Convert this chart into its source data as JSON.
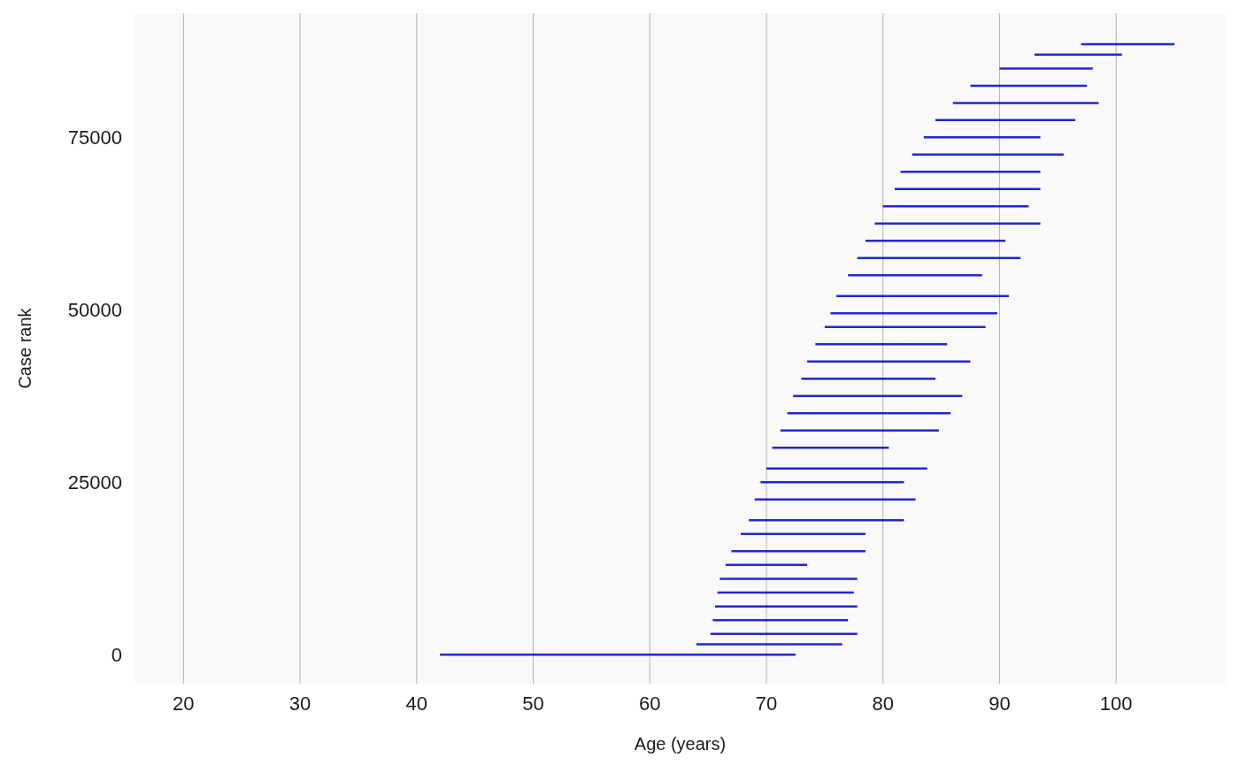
{
  "chart_data": {
    "type": "line",
    "xlabel": "Age (years)",
    "ylabel": "Case rank",
    "xlim": [
      15.8,
      109.4
    ],
    "ylim": [
      -4200,
      93000
    ],
    "xticks": [
      20,
      30,
      40,
      50,
      60,
      70,
      80,
      90,
      100
    ],
    "yticks": [
      0,
      25000,
      50000,
      75000
    ],
    "grid": "x",
    "marker": "none",
    "line_style": "solid",
    "series": [
      {
        "color": "#0000cc",
        "x": [
          42,
          72.5
        ],
        "values": [
          0,
          0
        ]
      },
      {
        "color": "#0000cc",
        "x": [
          64,
          76.5
        ],
        "values": [
          1500,
          1500
        ]
      },
      {
        "color": "#0000cc",
        "x": [
          65.2,
          77.8
        ],
        "values": [
          3000,
          3000
        ]
      },
      {
        "color": "#0000cc",
        "x": [
          65.4,
          77
        ],
        "values": [
          5000,
          5000
        ]
      },
      {
        "color": "#0000cc",
        "x": [
          65.6,
          77.8
        ],
        "values": [
          7000,
          7000
        ]
      },
      {
        "color": "#0000cc",
        "x": [
          65.8,
          77.5
        ],
        "values": [
          9000,
          9000
        ]
      },
      {
        "color": "#0000cc",
        "x": [
          66,
          77.8
        ],
        "values": [
          11000,
          11000
        ]
      },
      {
        "color": "#0000cc",
        "x": [
          66.5,
          73.5
        ],
        "values": [
          13000,
          13000
        ]
      },
      {
        "color": "#0000cc",
        "x": [
          67,
          78.5
        ],
        "values": [
          15000,
          15000
        ]
      },
      {
        "color": "#0000cc",
        "x": [
          67.8,
          78.5
        ],
        "values": [
          17500,
          17500
        ]
      },
      {
        "color": "#0000cc",
        "x": [
          68.5,
          81.8
        ],
        "values": [
          19500,
          19500
        ]
      },
      {
        "color": "#0000cc",
        "x": [
          69,
          82.8
        ],
        "values": [
          22500,
          22500
        ]
      },
      {
        "color": "#0000cc",
        "x": [
          69.5,
          81.8
        ],
        "values": [
          25000,
          25000
        ]
      },
      {
        "color": "#0000cc",
        "x": [
          70,
          83.8
        ],
        "values": [
          27000,
          27000
        ]
      },
      {
        "color": "#0000cc",
        "x": [
          70.5,
          80.5
        ],
        "values": [
          30000,
          30000
        ]
      },
      {
        "color": "#0000cc",
        "x": [
          71.2,
          84.8
        ],
        "values": [
          32500,
          32500
        ]
      },
      {
        "color": "#0000cc",
        "x": [
          71.8,
          85.8
        ],
        "values": [
          35000,
          35000
        ]
      },
      {
        "color": "#0000cc",
        "x": [
          72.3,
          86.8
        ],
        "values": [
          37500,
          37500
        ]
      },
      {
        "color": "#0000cc",
        "x": [
          73,
          84.5
        ],
        "values": [
          40000,
          40000
        ]
      },
      {
        "color": "#0000cc",
        "x": [
          73.5,
          87.5
        ],
        "values": [
          42500,
          42500
        ]
      },
      {
        "color": "#0000cc",
        "x": [
          74.2,
          85.5
        ],
        "values": [
          45000,
          45000
        ]
      },
      {
        "color": "#0000cc",
        "x": [
          75,
          88.8
        ],
        "values": [
          47500,
          47500
        ]
      },
      {
        "color": "#0000cc",
        "x": [
          75.5,
          89.8
        ],
        "values": [
          49500,
          49500
        ]
      },
      {
        "color": "#0000cc",
        "x": [
          76,
          90.8
        ],
        "values": [
          52000,
          52000
        ]
      },
      {
        "color": "#0000cc",
        "x": [
          77,
          88.5
        ],
        "values": [
          55000,
          55000
        ]
      },
      {
        "color": "#0000cc",
        "x": [
          77.8,
          91.8
        ],
        "values": [
          57500,
          57500
        ]
      },
      {
        "color": "#0000cc",
        "x": [
          78.5,
          90.5
        ],
        "values": [
          60000,
          60000
        ]
      },
      {
        "color": "#0000cc",
        "x": [
          79.3,
          93.5
        ],
        "values": [
          62500,
          62500
        ]
      },
      {
        "color": "#0000cc",
        "x": [
          80,
          92.5
        ],
        "values": [
          65000,
          65000
        ]
      },
      {
        "color": "#0000cc",
        "x": [
          81,
          93.5
        ],
        "values": [
          67500,
          67500
        ]
      },
      {
        "color": "#0000cc",
        "x": [
          81.5,
          93.5
        ],
        "values": [
          70000,
          70000
        ]
      },
      {
        "color": "#0000cc",
        "x": [
          82.5,
          95.5
        ],
        "values": [
          72500,
          72500
        ]
      },
      {
        "color": "#0000cc",
        "x": [
          83.5,
          93.5
        ],
        "values": [
          75000,
          75000
        ]
      },
      {
        "color": "#0000cc",
        "x": [
          84.5,
          96.5
        ],
        "values": [
          77500,
          77500
        ]
      },
      {
        "color": "#0000cc",
        "x": [
          86,
          98.5
        ],
        "values": [
          80000,
          80000
        ]
      },
      {
        "color": "#0000cc",
        "x": [
          87.5,
          97.5
        ],
        "values": [
          82500,
          82500
        ]
      },
      {
        "color": "#0000cc",
        "x": [
          90,
          98
        ],
        "values": [
          85000,
          85000
        ]
      },
      {
        "color": "#0000cc",
        "x": [
          93,
          100.5
        ],
        "values": [
          87000,
          87000
        ]
      },
      {
        "color": "#0000cc",
        "x": [
          97,
          105
        ],
        "values": [
          88500,
          88500
        ]
      }
    ]
  }
}
